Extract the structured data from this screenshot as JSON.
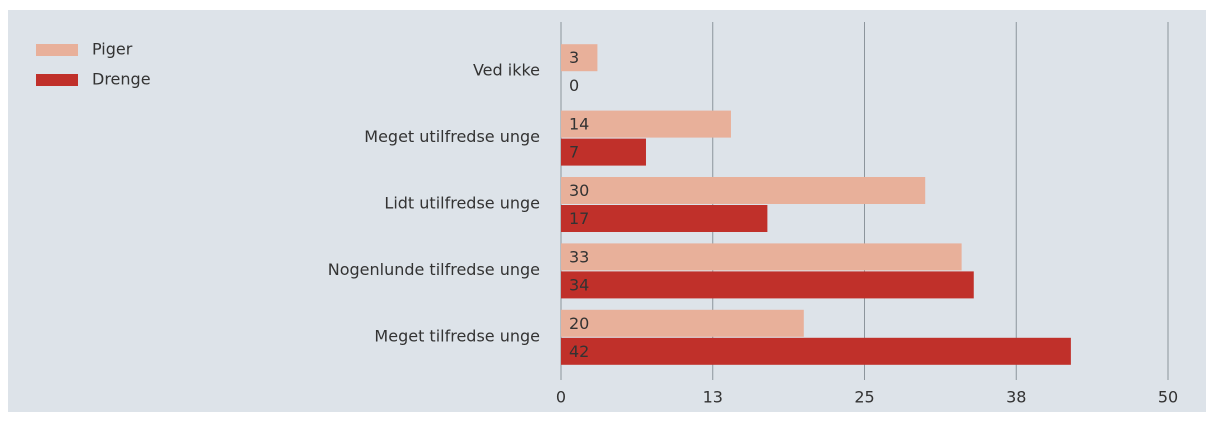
{
  "chart_data": {
    "type": "hbar",
    "categories": [
      "Ved ikke",
      "Meget utilfredse unge",
      "Lidt utilfredse unge",
      "Nogenlunde tilfredse unge",
      "Meget tilfredse unge"
    ],
    "series": [
      {
        "name": "Piger",
        "color": "#e8b09a",
        "values": [
          3,
          14,
          30,
          33,
          20
        ]
      },
      {
        "name": "Drenge",
        "color": "#c0302a",
        "values": [
          0,
          7,
          17,
          34,
          42
        ]
      }
    ],
    "xlim": [
      0,
      50
    ],
    "xticks": [
      0,
      {
        "value": 12.5,
        "label": "13"
      },
      25,
      {
        "value": 37.5,
        "label": "38"
      },
      50
    ],
    "grid": true,
    "legend": "top-left"
  }
}
